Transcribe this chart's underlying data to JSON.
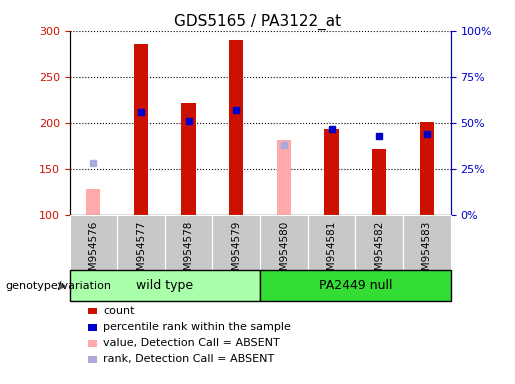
{
  "title": "GDS5165 / PA3122_at",
  "samples": [
    "GSM954576",
    "GSM954577",
    "GSM954578",
    "GSM954579",
    "GSM954580",
    "GSM954581",
    "GSM954582",
    "GSM954583"
  ],
  "groups": [
    {
      "name": "wild type",
      "indices": [
        0,
        1,
        2,
        3
      ],
      "color": "#AAFFAA"
    },
    {
      "name": "PA2449 null",
      "indices": [
        4,
        5,
        6,
        7
      ],
      "color": "#33DD33"
    }
  ],
  "count_values": [
    null,
    286,
    222,
    290,
    null,
    193,
    172,
    201
  ],
  "count_absent_values": [
    128,
    null,
    null,
    null,
    181,
    null,
    null,
    null
  ],
  "percentile_values": [
    null,
    212,
    202,
    214,
    null,
    193,
    186,
    188
  ],
  "rank_absent_values": [
    157,
    null,
    null,
    null,
    176,
    null,
    null,
    null
  ],
  "ylim_left": [
    100,
    300
  ],
  "ylim_right": [
    0,
    100
  ],
  "yticks_left": [
    100,
    150,
    200,
    250,
    300
  ],
  "yticks_right": [
    0,
    25,
    50,
    75,
    100
  ],
  "ytick_labels_right": [
    "0%",
    "25%",
    "50%",
    "75%",
    "100%"
  ],
  "count_color": "#CC1100",
  "count_absent_color": "#FFAAAA",
  "percentile_color": "#0000CC",
  "rank_absent_color": "#AAAADD",
  "legend_items": [
    {
      "label": "count",
      "color": "#CC1100"
    },
    {
      "label": "percentile rank within the sample",
      "color": "#0000CC"
    },
    {
      "label": "value, Detection Call = ABSENT",
      "color": "#FFAAAA"
    },
    {
      "label": "rank, Detection Call = ABSENT",
      "color": "#AAAADD"
    }
  ],
  "genotype_label": "genotype/variation",
  "sample_box_color": "#C8C8C8",
  "plot_bg_color": "#FFFFFF"
}
